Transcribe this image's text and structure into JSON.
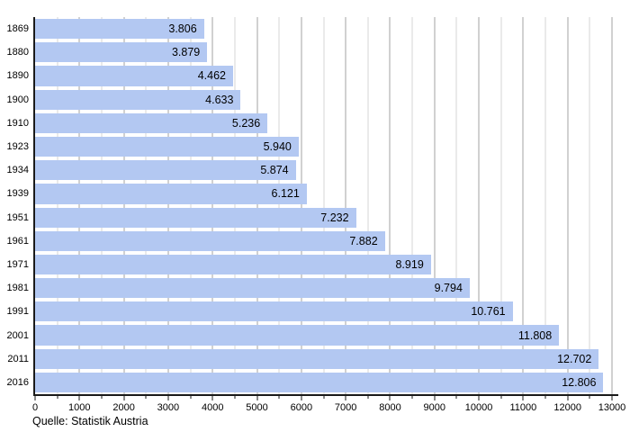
{
  "chart_data": {
    "type": "bar",
    "orientation": "horizontal",
    "title": "",
    "categories": [
      "1869",
      "1880",
      "1890",
      "1900",
      "1910",
      "1923",
      "1934",
      "1939",
      "1951",
      "1961",
      "1971",
      "1981",
      "1991",
      "2001",
      "2011",
      "2016"
    ],
    "values": [
      3806,
      3879,
      4462,
      4633,
      5236,
      5940,
      5874,
      6121,
      7232,
      7882,
      8919,
      9794,
      10761,
      11808,
      12702,
      12806
    ],
    "value_labels": [
      "3.806",
      "3.879",
      "4.462",
      "4.633",
      "5.236",
      "5.940",
      "5.874",
      "6.121",
      "7.232",
      "7.882",
      "8.919",
      "9.794",
      "10.761",
      "11.808",
      "12.702",
      "12.806"
    ],
    "xlim": [
      0,
      13000
    ],
    "x_major_tick_step": 1000,
    "x_minor_tick_step": 500,
    "x_tick_labels": [
      "0",
      "1000",
      "2000",
      "3000",
      "4000",
      "5000",
      "6000",
      "7000",
      "8000",
      "9000",
      "10000",
      "11000",
      "12000",
      "13000"
    ],
    "grid": true,
    "legend": false,
    "source": "Quelle: Statistik Austria"
  },
  "colors": {
    "bar_fill": "#b3c8f2",
    "grid_major": "#a3a3a3",
    "grid_minor": "#d5d5d5",
    "axis": "#1a1a1a",
    "text": "#000000",
    "background": "#ffffff"
  }
}
